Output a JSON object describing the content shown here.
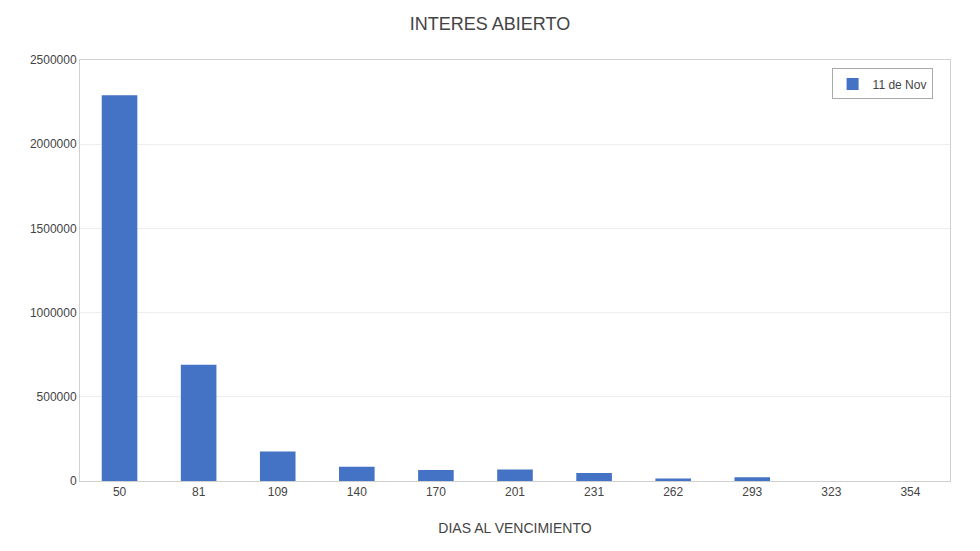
{
  "chart_data": {
    "type": "bar",
    "title": "INTERES ABIERTO",
    "xlabel": "DIAS AL VENCIMIENTO",
    "categories": [
      "50",
      "81",
      "109",
      "140",
      "170",
      "201",
      "231",
      "262",
      "293",
      "323",
      "354"
    ],
    "series": [
      {
        "name": "11 de Nov",
        "color": "#4472C4",
        "values": [
          2290000,
          690000,
          175000,
          85000,
          65000,
          68000,
          48000,
          15000,
          22000,
          0,
          0
        ]
      }
    ],
    "ylim": [
      0,
      2500000
    ],
    "yticks": [
      0,
      500000,
      1000000,
      1500000,
      2000000,
      2500000
    ],
    "grid": true,
    "legend": "upper right"
  }
}
